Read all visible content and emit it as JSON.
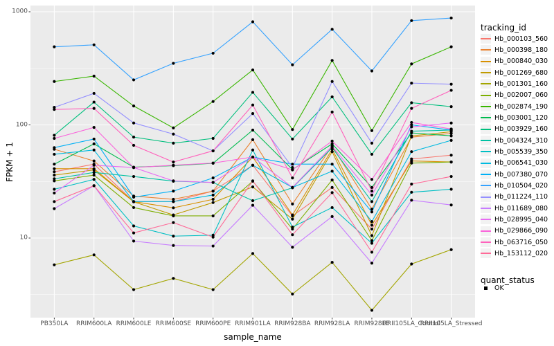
{
  "figure": {
    "panel_bg": "#EBEBEB",
    "grid_color": "#FFFFFF",
    "tick_text_color": "#4D4D4D",
    "tick_mark_color": "#333333"
  },
  "chart_data": {
    "type": "line",
    "title": "",
    "xlabel": "sample_name",
    "ylabel": "FPKM + 1",
    "y_scale": "log10",
    "ylim": [
      2,
      1000
    ],
    "grid": true,
    "legend_position": "right",
    "point_shape": "filled-black-circle",
    "y_ticks": [
      {
        "label": "1000",
        "value": 1000
      },
      {
        "label": "100",
        "value": 100
      },
      {
        "label": "10",
        "value": 10
      }
    ],
    "y_minor": [
      3.1623,
      31.623,
      316.23
    ],
    "categories": [
      "PB350LA",
      "RRIM600LA",
      "RRIM600LE",
      "RRIM600SE",
      "RRIM600PE",
      "RRIM901LA",
      "RRIM928BA",
      "RRIM928LA",
      "RRIM928LE",
      "RRII105LA_Control",
      "RRII105LA_Stressed"
    ],
    "legend_tracking_title": "tracking_id",
    "legend_quant_title": "quant_status",
    "quant_status_items": [
      "OK"
    ],
    "series": [
      {
        "name": "Hb_000103_560",
        "color": "#F8766D",
        "values": [
          38.5,
          45,
          21,
          21,
          26,
          44,
          15.7,
          28,
          12,
          50,
          54
        ]
      },
      {
        "name": "Hb_000398_180",
        "color": "#EA8331",
        "values": [
          61,
          48,
          23.5,
          22,
          26,
          74,
          20,
          65,
          18,
          78,
          84
        ]
      },
      {
        "name": "Hb_000840_030",
        "color": "#D89000",
        "values": [
          41,
          41,
          21,
          18.5,
          22,
          52,
          16,
          61,
          13,
          48,
          47
        ]
      },
      {
        "name": "Hb_001269_680",
        "color": "#C09B00",
        "values": [
          36,
          40,
          20.9,
          16,
          20.6,
          28.3,
          14.7,
          58,
          10.5,
          80,
          87
        ]
      },
      {
        "name": "Hb_001301_160",
        "color": "#A3A500",
        "values": [
          5.8,
          7.1,
          3.5,
          4.4,
          3.5,
          7.3,
          3.2,
          6.1,
          2.3,
          5.9,
          7.9
        ]
      },
      {
        "name": "Hb_002007_060",
        "color": "#7CAE00",
        "values": [
          32,
          36,
          18.6,
          15.7,
          15.7,
          31.8,
          12,
          32.6,
          9.5,
          46,
          47
        ]
      },
      {
        "name": "Hb_002874_190",
        "color": "#39B600",
        "values": [
          242,
          270,
          147,
          94,
          161,
          306,
          91,
          371,
          89,
          346,
          490
        ]
      },
      {
        "name": "Hb_003001_120",
        "color": "#00BB4E",
        "values": [
          45,
          68,
          42.3,
          43.6,
          45.8,
          90,
          40.3,
          68,
          28,
          85,
          80
        ]
      },
      {
        "name": "Hb_003929_160",
        "color": "#00BF7D",
        "values": [
          81,
          159,
          78,
          69,
          76,
          194,
          75,
          177,
          55,
          157,
          145
        ]
      },
      {
        "name": "Hb_004324_310",
        "color": "#00C1A3",
        "values": [
          33.4,
          38,
          35,
          31.8,
          31,
          21.4,
          27.8,
          63,
          21,
          88,
          90
        ]
      },
      {
        "name": "Hb_005539_350",
        "color": "#00BFC4",
        "values": [
          27,
          33,
          12.8,
          10.4,
          10.6,
          60,
          12.5,
          18.6,
          9,
          25.4,
          27
        ]
      },
      {
        "name": "Hb_006541_030",
        "color": "#00BAE0",
        "values": [
          55,
          60,
          21,
          21,
          24,
          44,
          28,
          39,
          14,
          58,
          73
        ]
      },
      {
        "name": "Hb_007380_070",
        "color": "#00B0F6",
        "values": [
          63,
          75,
          23,
          26,
          34,
          52,
          45,
          45,
          17,
          100,
          90
        ]
      },
      {
        "name": "Hb_010504_020",
        "color": "#35A2FF",
        "values": [
          490,
          510,
          250,
          350,
          430,
          815,
          340,
          700,
          300,
          835,
          880
        ]
      },
      {
        "name": "Hb_011224_110",
        "color": "#9590FF",
        "values": [
          143,
          190,
          104,
          83,
          59,
          126,
          42,
          242,
          69,
          234,
          229
        ]
      },
      {
        "name": "Hb_011689_080",
        "color": "#C77CFF",
        "values": [
          18.2,
          29,
          9.4,
          8.6,
          8.5,
          19.5,
          8.3,
          15.5,
          6.0,
          21.6,
          19.6
        ]
      },
      {
        "name": "Hb_028995_040",
        "color": "#E76BF3",
        "values": [
          25,
          44,
          42,
          32,
          31,
          52,
          28,
          65,
          24,
          96,
          104
        ]
      },
      {
        "name": "Hb_029866_090",
        "color": "#FA62DB",
        "values": [
          76,
          95,
          42,
          44,
          46,
          52,
          40,
          72,
          33,
          105,
          92
        ]
      },
      {
        "name": "Hb_063716_050",
        "color": "#FF62BC",
        "values": [
          137,
          140,
          66,
          47,
          59,
          150,
          34,
          130,
          26,
          140,
          202
        ]
      },
      {
        "name": "Hb_153112_020",
        "color": "#FF6A98",
        "values": [
          21,
          29,
          11.1,
          13.7,
          10.2,
          32,
          10.7,
          25.2,
          7.5,
          30,
          35
        ]
      }
    ]
  }
}
